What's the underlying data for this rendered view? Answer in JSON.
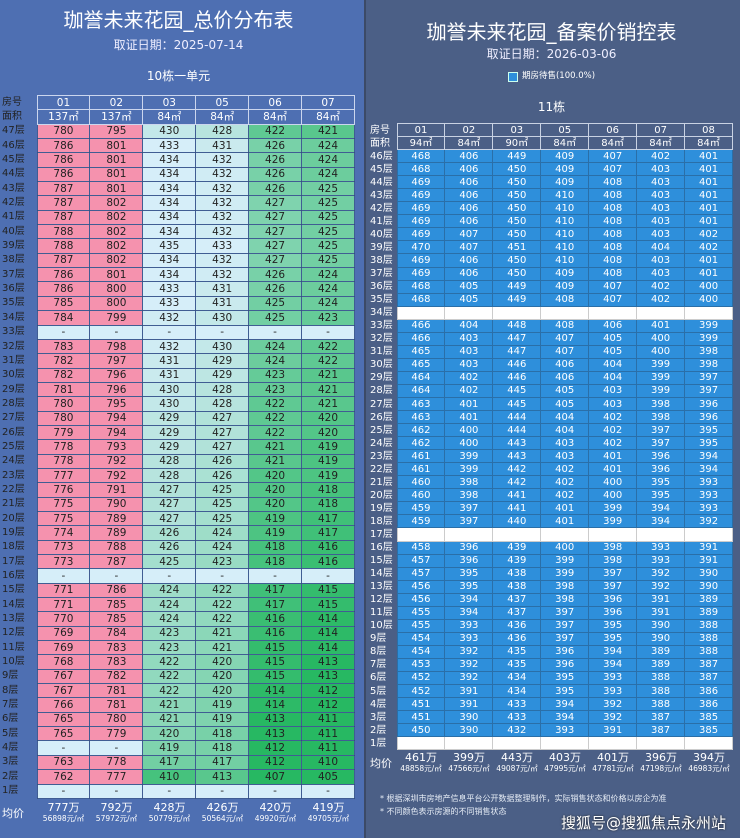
{
  "left": {
    "title": "珈誉未来花园_总价分布表",
    "date": "取证日期：2025-07-14",
    "building": "10栋一单元",
    "room_label": "房号",
    "area_label": "面积",
    "avg_label": "均价",
    "rooms": [
      "01",
      "02",
      "03",
      "05",
      "06",
      "07"
    ],
    "areas": [
      "137㎡",
      "137㎡",
      "84㎡",
      "84㎡",
      "84㎡",
      "84㎡"
    ],
    "rows": [
      {
        "floor": "47层",
        "values": [
          "780",
          "795",
          "430",
          "428",
          "422",
          "421"
        ]
      },
      {
        "floor": "46层",
        "values": [
          "786",
          "801",
          "433",
          "431",
          "426",
          "424"
        ]
      },
      {
        "floor": "45层",
        "values": [
          "786",
          "801",
          "434",
          "432",
          "426",
          "424"
        ]
      },
      {
        "floor": "44层",
        "values": [
          "786",
          "801",
          "434",
          "432",
          "426",
          "424"
        ]
      },
      {
        "floor": "43层",
        "values": [
          "787",
          "801",
          "434",
          "432",
          "426",
          "425"
        ]
      },
      {
        "floor": "42层",
        "values": [
          "787",
          "802",
          "434",
          "432",
          "427",
          "425"
        ]
      },
      {
        "floor": "41层",
        "values": [
          "787",
          "802",
          "434",
          "432",
          "427",
          "425"
        ]
      },
      {
        "floor": "40层",
        "values": [
          "788",
          "802",
          "434",
          "432",
          "427",
          "425"
        ]
      },
      {
        "floor": "39层",
        "values": [
          "788",
          "802",
          "435",
          "433",
          "427",
          "425"
        ]
      },
      {
        "floor": "38层",
        "values": [
          "787",
          "802",
          "434",
          "432",
          "427",
          "425"
        ]
      },
      {
        "floor": "37层",
        "values": [
          "786",
          "801",
          "434",
          "432",
          "426",
          "424"
        ]
      },
      {
        "floor": "36层",
        "values": [
          "786",
          "800",
          "433",
          "431",
          "426",
          "424"
        ]
      },
      {
        "floor": "35层",
        "values": [
          "785",
          "800",
          "433",
          "431",
          "425",
          "424"
        ]
      },
      {
        "floor": "34层",
        "values": [
          "784",
          "799",
          "432",
          "430",
          "425",
          "423"
        ]
      },
      {
        "floor": "33层",
        "values": [
          "-",
          "-",
          "-",
          "-",
          "-",
          "-"
        ]
      },
      {
        "floor": "32层",
        "values": [
          "783",
          "798",
          "432",
          "430",
          "424",
          "422"
        ]
      },
      {
        "floor": "31层",
        "values": [
          "782",
          "797",
          "431",
          "429",
          "424",
          "422"
        ]
      },
      {
        "floor": "30层",
        "values": [
          "782",
          "796",
          "431",
          "429",
          "423",
          "421"
        ]
      },
      {
        "floor": "29层",
        "values": [
          "781",
          "796",
          "430",
          "428",
          "423",
          "421"
        ]
      },
      {
        "floor": "28层",
        "values": [
          "780",
          "795",
          "430",
          "428",
          "422",
          "421"
        ]
      },
      {
        "floor": "27层",
        "values": [
          "780",
          "794",
          "429",
          "427",
          "422",
          "420"
        ]
      },
      {
        "floor": "26层",
        "values": [
          "779",
          "794",
          "429",
          "427",
          "422",
          "420"
        ]
      },
      {
        "floor": "25层",
        "values": [
          "778",
          "793",
          "429",
          "427",
          "421",
          "419"
        ]
      },
      {
        "floor": "24层",
        "values": [
          "778",
          "792",
          "428",
          "426",
          "421",
          "419"
        ]
      },
      {
        "floor": "23层",
        "values": [
          "777",
          "792",
          "428",
          "426",
          "420",
          "419"
        ]
      },
      {
        "floor": "22层",
        "values": [
          "776",
          "791",
          "427",
          "425",
          "420",
          "418"
        ]
      },
      {
        "floor": "21层",
        "values": [
          "775",
          "790",
          "427",
          "425",
          "420",
          "418"
        ]
      },
      {
        "floor": "20层",
        "values": [
          "775",
          "789",
          "427",
          "425",
          "419",
          "417"
        ]
      },
      {
        "floor": "19层",
        "values": [
          "774",
          "789",
          "426",
          "424",
          "419",
          "417"
        ]
      },
      {
        "floor": "18层",
        "values": [
          "773",
          "788",
          "426",
          "424",
          "418",
          "416"
        ]
      },
      {
        "floor": "17层",
        "values": [
          "773",
          "787",
          "425",
          "423",
          "418",
          "416"
        ]
      },
      {
        "floor": "16层",
        "values": [
          "-",
          "-",
          "-",
          "-",
          "-",
          "-"
        ]
      },
      {
        "floor": "15层",
        "values": [
          "771",
          "786",
          "424",
          "422",
          "417",
          "415"
        ]
      },
      {
        "floor": "14层",
        "values": [
          "771",
          "785",
          "424",
          "422",
          "417",
          "415"
        ]
      },
      {
        "floor": "13层",
        "values": [
          "770",
          "785",
          "424",
          "422",
          "416",
          "414"
        ]
      },
      {
        "floor": "12层",
        "values": [
          "769",
          "784",
          "423",
          "421",
          "416",
          "414"
        ]
      },
      {
        "floor": "11层",
        "values": [
          "769",
          "783",
          "423",
          "421",
          "415",
          "414"
        ]
      },
      {
        "floor": "10层",
        "values": [
          "768",
          "783",
          "422",
          "420",
          "415",
          "413"
        ]
      },
      {
        "floor": "9层",
        "values": [
          "767",
          "782",
          "422",
          "420",
          "415",
          "413"
        ]
      },
      {
        "floor": "8层",
        "values": [
          "767",
          "781",
          "422",
          "420",
          "414",
          "412"
        ]
      },
      {
        "floor": "7层",
        "values": [
          "766",
          "781",
          "421",
          "419",
          "414",
          "412"
        ]
      },
      {
        "floor": "6层",
        "values": [
          "765",
          "780",
          "421",
          "419",
          "413",
          "411"
        ]
      },
      {
        "floor": "5层",
        "values": [
          "765",
          "779",
          "420",
          "418",
          "413",
          "411"
        ]
      },
      {
        "floor": "4层",
        "values": [
          "-",
          "-",
          "419",
          "418",
          "412",
          "411"
        ]
      },
      {
        "floor": "3层",
        "values": [
          "763",
          "778",
          "417",
          "417",
          "412",
          "410"
        ]
      },
      {
        "floor": "2层",
        "values": [
          "762",
          "777",
          "410",
          "413",
          "407",
          "405"
        ]
      },
      {
        "floor": "1层",
        "values": [
          "-",
          "-",
          "-",
          "-",
          "-",
          "-"
        ]
      }
    ],
    "averages": [
      {
        "total": "777万",
        "per_sqm": "56898元/㎡"
      },
      {
        "total": "792万",
        "per_sqm": "57972元/㎡"
      },
      {
        "total": "428万",
        "per_sqm": "50779元/㎡"
      },
      {
        "total": "426万",
        "per_sqm": "50564元/㎡"
      },
      {
        "total": "420万",
        "per_sqm": "49920元/㎡"
      },
      {
        "total": "419万",
        "per_sqm": "49705元/㎡"
      }
    ],
    "colors": {
      "pink": "#f592ae",
      "light": "#d6eef9",
      "green": "#27b862",
      "bg": "#4e6fb2"
    }
  },
  "right": {
    "title": "珈誉未来花园_备案价销控表",
    "date": "取证日期：2026-03-06",
    "legend": "期房待售(100.0%)",
    "building": "11栋",
    "room_label": "房号",
    "area_label": "面积",
    "avg_label": "均价",
    "rooms": [
      "01",
      "02",
      "03",
      "05",
      "06",
      "07",
      "08"
    ],
    "areas": [
      "94㎡",
      "84㎡",
      "90㎡",
      "84㎡",
      "84㎡",
      "84㎡",
      "84㎡"
    ],
    "rows": [
      {
        "floor": "46层",
        "values": [
          "468",
          "406",
          "449",
          "409",
          "407",
          "402",
          "401"
        ]
      },
      {
        "floor": "45层",
        "values": [
          "468",
          "406",
          "450",
          "409",
          "407",
          "403",
          "401"
        ]
      },
      {
        "floor": "44层",
        "values": [
          "469",
          "406",
          "450",
          "409",
          "408",
          "403",
          "401"
        ]
      },
      {
        "floor": "43层",
        "values": [
          "469",
          "406",
          "450",
          "410",
          "408",
          "403",
          "401"
        ]
      },
      {
        "floor": "42层",
        "values": [
          "469",
          "406",
          "450",
          "410",
          "408",
          "403",
          "401"
        ]
      },
      {
        "floor": "41层",
        "values": [
          "469",
          "406",
          "450",
          "410",
          "408",
          "403",
          "401"
        ]
      },
      {
        "floor": "40层",
        "values": [
          "469",
          "407",
          "450",
          "410",
          "408",
          "403",
          "402"
        ]
      },
      {
        "floor": "39层",
        "values": [
          "470",
          "407",
          "451",
          "410",
          "408",
          "404",
          "402"
        ]
      },
      {
        "floor": "38层",
        "values": [
          "469",
          "406",
          "450",
          "410",
          "408",
          "403",
          "401"
        ]
      },
      {
        "floor": "37层",
        "values": [
          "469",
          "406",
          "450",
          "409",
          "408",
          "403",
          "401"
        ]
      },
      {
        "floor": "36层",
        "values": [
          "468",
          "405",
          "449",
          "409",
          "407",
          "402",
          "400"
        ]
      },
      {
        "floor": "35层",
        "values": [
          "468",
          "405",
          "449",
          "408",
          "407",
          "402",
          "400"
        ]
      },
      {
        "floor": "34层",
        "values": []
      },
      {
        "floor": "33层",
        "values": [
          "466",
          "404",
          "448",
          "408",
          "406",
          "401",
          "399"
        ]
      },
      {
        "floor": "32层",
        "values": [
          "466",
          "403",
          "447",
          "407",
          "405",
          "400",
          "399"
        ]
      },
      {
        "floor": "31层",
        "values": [
          "465",
          "403",
          "447",
          "407",
          "405",
          "400",
          "398"
        ]
      },
      {
        "floor": "30层",
        "values": [
          "465",
          "403",
          "446",
          "406",
          "404",
          "399",
          "398"
        ]
      },
      {
        "floor": "29层",
        "values": [
          "464",
          "402",
          "446",
          "406",
          "404",
          "399",
          "397"
        ]
      },
      {
        "floor": "28层",
        "values": [
          "464",
          "402",
          "445",
          "405",
          "403",
          "399",
          "397"
        ]
      },
      {
        "floor": "27层",
        "values": [
          "463",
          "401",
          "445",
          "405",
          "403",
          "398",
          "396"
        ]
      },
      {
        "floor": "26层",
        "values": [
          "463",
          "401",
          "444",
          "404",
          "402",
          "398",
          "396"
        ]
      },
      {
        "floor": "25层",
        "values": [
          "462",
          "400",
          "444",
          "404",
          "402",
          "397",
          "395"
        ]
      },
      {
        "floor": "24层",
        "values": [
          "462",
          "400",
          "443",
          "403",
          "402",
          "397",
          "395"
        ]
      },
      {
        "floor": "23层",
        "values": [
          "461",
          "399",
          "443",
          "403",
          "401",
          "396",
          "394"
        ]
      },
      {
        "floor": "22层",
        "values": [
          "461",
          "399",
          "442",
          "402",
          "401",
          "396",
          "394"
        ]
      },
      {
        "floor": "21层",
        "values": [
          "460",
          "398",
          "442",
          "402",
          "400",
          "395",
          "393"
        ]
      },
      {
        "floor": "20层",
        "values": [
          "460",
          "398",
          "441",
          "402",
          "400",
          "395",
          "393"
        ]
      },
      {
        "floor": "19层",
        "values": [
          "459",
          "397",
          "441",
          "401",
          "399",
          "394",
          "393"
        ]
      },
      {
        "floor": "18层",
        "values": [
          "459",
          "397",
          "440",
          "401",
          "399",
          "394",
          "392"
        ]
      },
      {
        "floor": "17层",
        "values": []
      },
      {
        "floor": "16层",
        "values": [
          "458",
          "396",
          "439",
          "400",
          "398",
          "393",
          "391"
        ]
      },
      {
        "floor": "15层",
        "values": [
          "457",
          "396",
          "439",
          "399",
          "398",
          "393",
          "391"
        ]
      },
      {
        "floor": "14层",
        "values": [
          "457",
          "395",
          "438",
          "399",
          "397",
          "392",
          "390"
        ]
      },
      {
        "floor": "13层",
        "values": [
          "456",
          "395",
          "438",
          "398",
          "397",
          "392",
          "390"
        ]
      },
      {
        "floor": "12层",
        "values": [
          "456",
          "394",
          "437",
          "398",
          "396",
          "391",
          "389"
        ]
      },
      {
        "floor": "11层",
        "values": [
          "455",
          "394",
          "437",
          "397",
          "396",
          "391",
          "389"
        ]
      },
      {
        "floor": "10层",
        "values": [
          "455",
          "393",
          "436",
          "397",
          "395",
          "390",
          "388"
        ]
      },
      {
        "floor": "9层",
        "values": [
          "454",
          "393",
          "436",
          "397",
          "395",
          "390",
          "388"
        ]
      },
      {
        "floor": "8层",
        "values": [
          "454",
          "392",
          "435",
          "396",
          "394",
          "389",
          "388"
        ]
      },
      {
        "floor": "7层",
        "values": [
          "453",
          "392",
          "435",
          "396",
          "394",
          "389",
          "387"
        ]
      },
      {
        "floor": "6层",
        "values": [
          "452",
          "392",
          "434",
          "395",
          "393",
          "388",
          "387"
        ]
      },
      {
        "floor": "5层",
        "values": [
          "452",
          "391",
          "434",
          "395",
          "393",
          "388",
          "386"
        ]
      },
      {
        "floor": "4层",
        "values": [
          "451",
          "391",
          "433",
          "394",
          "392",
          "388",
          "386"
        ]
      },
      {
        "floor": "3层",
        "values": [
          "451",
          "390",
          "433",
          "394",
          "392",
          "387",
          "385"
        ]
      },
      {
        "floor": "2层",
        "values": [
          "450",
          "390",
          "432",
          "393",
          "391",
          "387",
          "385"
        ]
      },
      {
        "floor": "1层",
        "values": []
      }
    ],
    "averages": [
      {
        "total": "461万",
        "per_sqm": "48858元/㎡"
      },
      {
        "total": "399万",
        "per_sqm": "47566元/㎡"
      },
      {
        "total": "443万",
        "per_sqm": "49087元/㎡"
      },
      {
        "total": "403万",
        "per_sqm": "47995元/㎡"
      },
      {
        "total": "401万",
        "per_sqm": "47781元/㎡"
      },
      {
        "total": "396万",
        "per_sqm": "47198元/㎡"
      },
      {
        "total": "394万",
        "per_sqm": "46983元/㎡"
      }
    ],
    "notes": [
      "* 根据深圳市房地产信息平台公开数据整理制作，实际销售状态和价格以房企为准",
      "* 不同颜色表示房源的不同销售状态"
    ],
    "colors": {
      "for_sale": "#2e8fdb",
      "bg": "#4b5f86"
    }
  },
  "watermark": "搜狐号@搜狐焦点永州站"
}
